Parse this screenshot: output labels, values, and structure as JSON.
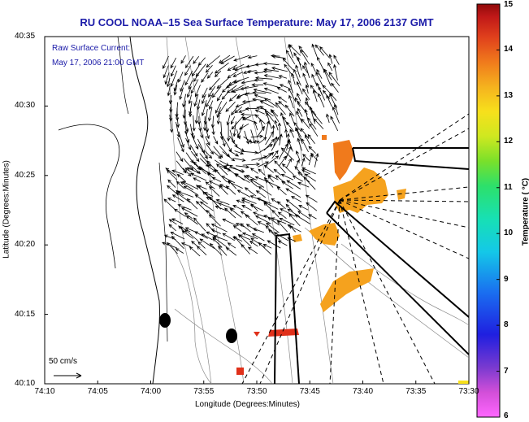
{
  "header": {
    "title": "RU COOL   NOAA–15  Sea Surface Temperature:  May 17, 2006 2137 GMT"
  },
  "annotations": {
    "current_line1": "Raw Surface Current:",
    "current_line2": "May 17, 2006 21:00 GMT"
  },
  "axes": {
    "xlabel": "Longitude (Degrees:Minutes)",
    "ylabel": "Latitude (Degrees:Minutes)",
    "x_ticks": [
      "74:10",
      "74:05",
      "74:00",
      "73:55",
      "73:50",
      "73:45",
      "73:40",
      "73:35",
      "73:30"
    ],
    "y_ticks": [
      "40:35",
      "40:30",
      "40:25",
      "40:20",
      "40:15",
      "40:10"
    ]
  },
  "scale": {
    "label": "50 cm/s"
  },
  "colorbar": {
    "label": "Temperature ( °C)",
    "ticks": [
      "15",
      "14",
      "13",
      "12",
      "11",
      "10",
      "9",
      "8",
      "7",
      "6"
    ],
    "min": 6,
    "max": 15
  },
  "colors": {
    "title": "#1a1aa8",
    "sst_orange": "#f5a21e",
    "sst_red": "#e8321a"
  }
}
